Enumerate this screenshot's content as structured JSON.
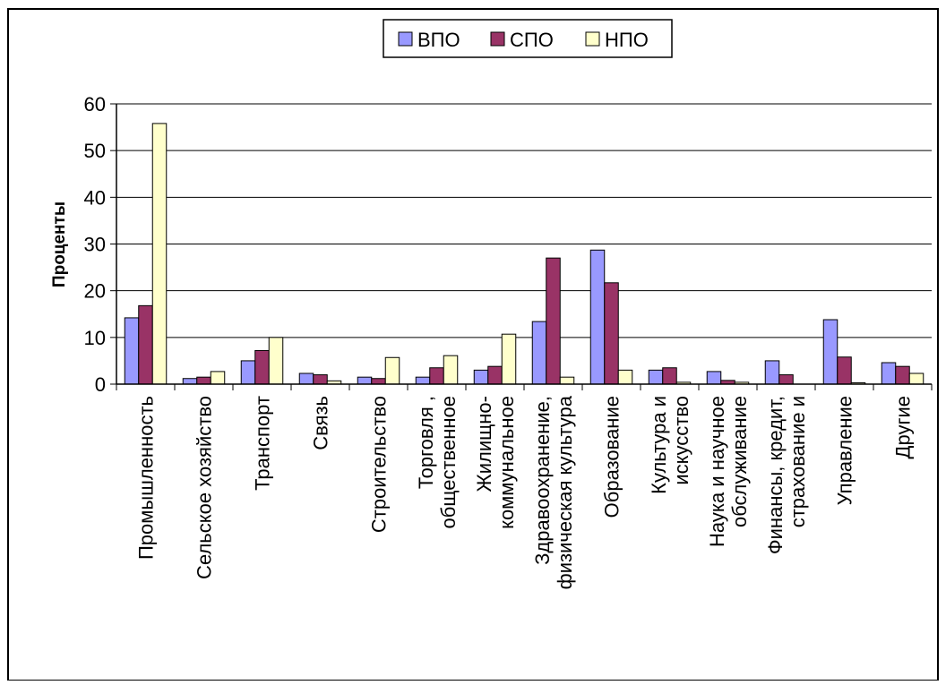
{
  "chart_data": {
    "type": "bar",
    "title": "",
    "xlabel": "",
    "ylabel": "Проценты",
    "ylim": [
      0,
      60
    ],
    "yticks": [
      0,
      10,
      20,
      30,
      40,
      50,
      60
    ],
    "grid": true,
    "legend_position": "top-center",
    "categories": [
      [
        "Промышленность"
      ],
      [
        "Сельское хозяйство"
      ],
      [
        "Транспорт"
      ],
      [
        "Связь"
      ],
      [
        "Строительство"
      ],
      [
        "Торговля ,",
        "общественное"
      ],
      [
        "Жилищно-",
        "коммунальное"
      ],
      [
        "Здравоохранение,",
        "физическая культура"
      ],
      [
        "Образование"
      ],
      [
        "Культура и",
        "искусство"
      ],
      [
        "Наука и научное",
        "обслуживание"
      ],
      [
        "Финансы, кредит,",
        "страхование и"
      ],
      [
        "Управление"
      ],
      [
        "Другие"
      ]
    ],
    "series": [
      {
        "name": "ВПО",
        "color": "#9999ff",
        "values": [
          14.2,
          1.2,
          5.0,
          2.3,
          1.5,
          1.5,
          3.0,
          13.4,
          28.7,
          3.0,
          2.7,
          5.0,
          13.8,
          4.6
        ]
      },
      {
        "name": "СПО",
        "color": "#993366",
        "values": [
          16.8,
          1.5,
          7.2,
          2.0,
          1.2,
          3.5,
          3.8,
          27.0,
          21.7,
          3.5,
          0.8,
          2.0,
          5.8,
          3.8
        ]
      },
      {
        "name": "НПО",
        "color": "#ffffcc",
        "values": [
          55.8,
          2.7,
          10.0,
          0.7,
          5.7,
          6.1,
          10.7,
          1.5,
          3.0,
          0.4,
          0.4,
          0.0,
          0.3,
          2.3
        ]
      }
    ]
  }
}
